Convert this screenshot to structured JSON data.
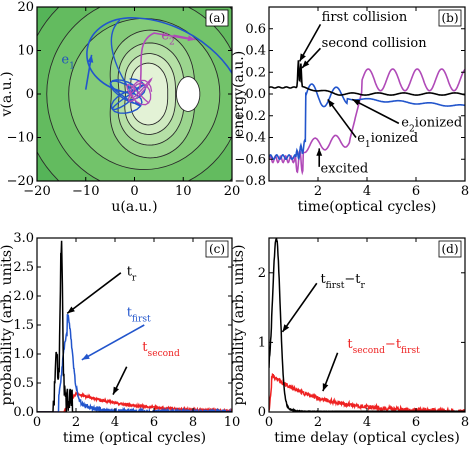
{
  "panels": [
    {
      "id": "a",
      "label": "(a)",
      "type": "contour",
      "xlabel": "u(a.u.)",
      "ylabel": "v(a.u.)",
      "xlim": [
        -20,
        20
      ],
      "ylim": [
        -20,
        20
      ],
      "xticks": [
        "−20",
        "−10",
        "0",
        "10",
        "20"
      ],
      "yticks": [
        "−20",
        "−10",
        "0",
        "10",
        "20"
      ],
      "annotations": [
        {
          "text": "e1",
          "main": "e",
          "sub": "1",
          "x": -15,
          "y": 7,
          "color": "#2255bb"
        },
        {
          "text": "e2",
          "main": "e",
          "sub": "2",
          "x": 5.5,
          "y": 12.5,
          "color": "#aa44aa"
        }
      ],
      "colors": {
        "bg": "#4caf50",
        "light": "#eef7e6",
        "e1": "#2255cc",
        "e2": "#b04ab8"
      }
    },
    {
      "id": "b",
      "label": "(b)",
      "type": "line",
      "xlabel": "time(optical cycles)",
      "ylabel": "energy(a.u.)",
      "xlim": [
        0,
        8
      ],
      "ylim": [
        -0.8,
        0.8
      ],
      "xticks": [
        "2",
        "4",
        "6",
        "8"
      ],
      "yticks": [
        "−0.8",
        "−0.6",
        "−0.4",
        "−0.2",
        "0.0",
        "0.2",
        "0.4",
        "0.6"
      ],
      "annotations": [
        {
          "text": "first collision",
          "x": 2.15,
          "y": 0.67
        },
        {
          "text": "second collision",
          "x": 2.15,
          "y": 0.43
        },
        {
          "text": "e2ionized",
          "main": "e",
          "sub": "2",
          "rest": "ionized",
          "x": 5.4,
          "y": -0.3
        },
        {
          "text": "e1ionized",
          "main": "e",
          "sub": "1",
          "rest": "ionized",
          "x": 3.6,
          "y": -0.44
        },
        {
          "text": "excited",
          "x": 2.1,
          "y": -0.72
        }
      ],
      "series": [
        {
          "name": "",
          "color": "#000000"
        },
        {
          "name": "",
          "color": "#2255cc"
        },
        {
          "name": "",
          "color": "#b04ab8"
        }
      ]
    },
    {
      "id": "c",
      "label": "(c)",
      "type": "line",
      "xlabel": "time (optical cycles)",
      "ylabel": "probability (arb. units)",
      "xlim": [
        0,
        10
      ],
      "ylim": [
        0,
        3.0
      ],
      "xticks": [
        "0",
        "2",
        "4",
        "6",
        "8",
        "10"
      ],
      "yticks": [
        "0.0",
        "0.5",
        "1.0",
        "1.5",
        "2.0",
        "2.5",
        "3.0"
      ],
      "series": [
        {
          "name": "tr",
          "main": "t",
          "sub": "r",
          "color": "#000000"
        },
        {
          "name": "tfirst",
          "main": "t",
          "sub": "first",
          "color": "#2255cc"
        },
        {
          "name": "tsecond",
          "main": "t",
          "sub": "second",
          "color": "#ee2222"
        }
      ]
    },
    {
      "id": "d",
      "label": "(d)",
      "type": "line",
      "xlabel": "time delay (optical cycles)",
      "ylabel": "probability (arb. units)",
      "xlim": [
        0,
        8
      ],
      "ylim": [
        0,
        2.5
      ],
      "xticks": [
        "0",
        "2",
        "4",
        "6",
        "8"
      ],
      "yticks": [
        "0",
        "1",
        "2"
      ],
      "series": [
        {
          "name": "tfirst−tr",
          "main": "t",
          "sub": "first",
          "mid": "−t",
          "sub2": "r",
          "color": "#000000"
        },
        {
          "name": "tsecond−tfirst",
          "main": "t",
          "sub": "second",
          "mid": "−t",
          "sub2": "first",
          "color": "#ee2222"
        }
      ]
    }
  ]
}
